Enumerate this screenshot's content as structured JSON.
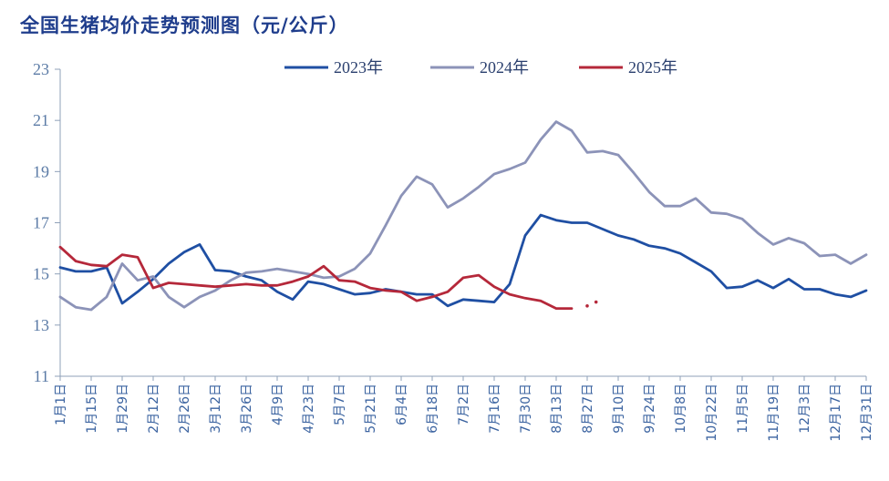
{
  "chart_data": {
    "type": "line",
    "title": "全国生猪均价走势预测图（元/公斤）",
    "xlabel": "",
    "ylabel": "",
    "ylim": [
      11,
      23
    ],
    "yticks": [
      11,
      13,
      15,
      17,
      19,
      21,
      23
    ],
    "grid": false,
    "legend": "top",
    "categories": [
      "1月1日",
      "1月15日",
      "1月29日",
      "2月12日",
      "2月26日",
      "3月12日",
      "3月26日",
      "4月9日",
      "4月23日",
      "5月7日",
      "5月21日",
      "6月4日",
      "6月18日",
      "7月2日",
      "7月16日",
      "7月30日",
      "8月13日",
      "8月27日",
      "9月10日",
      "9月24日",
      "10月8日",
      "10月22日",
      "11月5日",
      "11月19日",
      "12月3日",
      "12月17日",
      "12月31日"
    ],
    "series": [
      {
        "name": "2023年",
        "color": "#1f4fa3",
        "x": [
          1,
          8,
          15,
          22,
          29,
          36,
          43,
          50,
          57,
          64,
          71,
          78,
          85,
          92,
          99,
          106,
          113,
          120,
          127,
          134,
          141,
          148,
          155,
          162,
          169,
          176,
          183,
          190,
          197,
          204,
          211,
          218,
          225,
          232,
          239,
          246,
          253,
          260,
          267,
          274,
          281,
          288,
          295,
          302,
          309,
          316,
          323,
          330,
          337,
          344,
          351,
          358,
          365
        ],
        "values": [
          15.25,
          15.1,
          15.1,
          15.25,
          13.85,
          14.3,
          14.8,
          15.4,
          15.85,
          16.15,
          15.15,
          15.1,
          14.9,
          14.75,
          14.3,
          14.0,
          14.7,
          14.6,
          14.4,
          14.2,
          14.25,
          14.4,
          14.3,
          14.2,
          14.2,
          13.75,
          14.0,
          13.95,
          13.9,
          14.6,
          16.5,
          17.3,
          17.1,
          17.0,
          17.0,
          16.75,
          16.5,
          16.35,
          16.1,
          16.0,
          15.8,
          15.45,
          15.1,
          14.45,
          14.5,
          14.75,
          14.45,
          14.8,
          14.4,
          14.4,
          14.2,
          14.1,
          14.35
        ]
      },
      {
        "name": "2024年",
        "color": "#8c93b8",
        "x": [
          1,
          8,
          15,
          22,
          29,
          36,
          43,
          50,
          57,
          64,
          71,
          78,
          85,
          92,
          99,
          106,
          113,
          120,
          127,
          134,
          141,
          148,
          155,
          162,
          169,
          176,
          183,
          190,
          197,
          204,
          211,
          218,
          225,
          232,
          239,
          246,
          253,
          260,
          267,
          274,
          281,
          288,
          295,
          302,
          309,
          316,
          323,
          330,
          337,
          344,
          351,
          358,
          365
        ],
        "values": [
          14.1,
          13.7,
          13.6,
          14.1,
          15.4,
          14.75,
          14.9,
          14.1,
          13.7,
          14.1,
          14.35,
          14.75,
          15.05,
          15.1,
          15.2,
          15.1,
          15.0,
          14.85,
          14.9,
          15.2,
          15.8,
          16.9,
          18.05,
          18.8,
          18.5,
          17.6,
          17.95,
          18.4,
          18.9,
          19.1,
          19.35,
          20.25,
          20.95,
          20.6,
          19.75,
          19.8,
          19.65,
          18.95,
          18.2,
          17.65,
          17.65,
          17.95,
          17.4,
          17.35,
          17.15,
          16.6,
          16.15,
          16.4,
          16.2,
          15.7,
          15.75,
          15.4,
          15.75
        ]
      },
      {
        "name": "2025年",
        "color": "#b5283a",
        "x": [
          1,
          8,
          15,
          22,
          29,
          36,
          43,
          50,
          57,
          64,
          71,
          78,
          85,
          92,
          99,
          106,
          113,
          120,
          127,
          134,
          141,
          148,
          155,
          162,
          169,
          176,
          183,
          190,
          197,
          204,
          211,
          218,
          225,
          232
        ],
        "values": [
          16.05,
          15.5,
          15.35,
          15.3,
          15.75,
          15.65,
          14.45,
          14.65,
          14.6,
          14.55,
          14.5,
          14.55,
          14.6,
          14.55,
          14.55,
          14.7,
          14.9,
          15.3,
          14.75,
          14.7,
          14.45,
          14.35,
          14.3,
          13.95,
          14.1,
          14.3,
          14.85,
          14.95,
          14.5,
          14.2,
          14.05,
          13.95,
          13.65,
          13.65
        ],
        "forecast_x": [
          239,
          243
        ],
        "forecast_values": [
          13.75,
          13.9
        ]
      }
    ]
  }
}
